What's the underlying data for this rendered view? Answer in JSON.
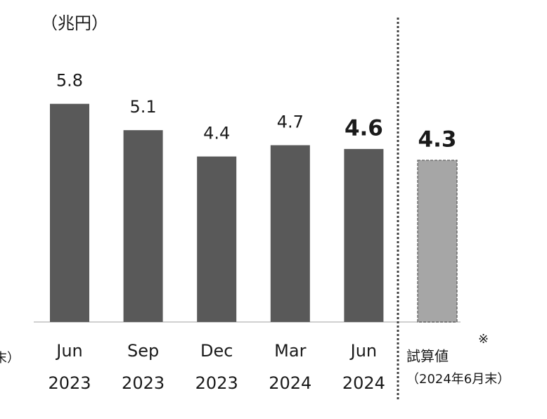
{
  "chart_data": {
    "type": "bar",
    "unit_label": "（兆円）",
    "left_note": "末）",
    "categories": [
      [
        "Jun",
        "2023"
      ],
      [
        "Sep",
        "2023"
      ],
      [
        "Dec",
        "2023"
      ],
      [
        "Mar",
        "2024"
      ],
      [
        "Jun",
        "2024"
      ],
      [
        "試算値",
        "（2024年6月末）"
      ]
    ],
    "category_note": "※",
    "values": [
      5.8,
      5.1,
      4.4,
      4.7,
      4.6,
      4.3
    ],
    "bold": [
      false,
      false,
      false,
      false,
      true,
      true
    ],
    "estimate": [
      false,
      false,
      false,
      false,
      false,
      true
    ],
    "color": "#595959",
    "estimate_color": "#a6a6a6"
  }
}
